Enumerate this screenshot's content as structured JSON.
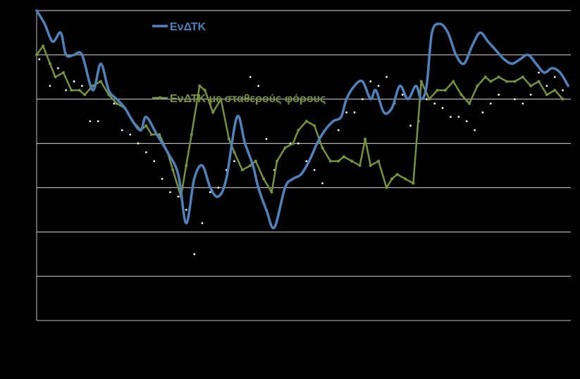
{
  "chart_data": {
    "type": "line",
    "title": "",
    "xlabel": "",
    "ylabel": "",
    "ylim": [
      0,
      7
    ],
    "grid": true,
    "legend": "top-center",
    "tick_labels_visible": false,
    "colors": {
      "background": "#000000",
      "gridline": "#d9d9d9",
      "axis": "#bfbfbf",
      "edtk": "#4f81bd",
      "edtk_ct": "#77933c",
      "dots": "#ffffff"
    },
    "series": [
      {
        "name": "ΕνΔΤΚ",
        "style": "smooth-line",
        "x": [
          0,
          1.5,
          3,
          4.5,
          5.5,
          7,
          8.5,
          10.5,
          12,
          13.5,
          15,
          16.5,
          18,
          19.5,
          20.5,
          22.5,
          24.5,
          26.5,
          28,
          29.5,
          31,
          32.5,
          34,
          35.5,
          37.5,
          39,
          40.5,
          41.5,
          43,
          44.5,
          46.5,
          48,
          49.5,
          51,
          52.5,
          54,
          55.5,
          57,
          58,
          59.5,
          61,
          62.5,
          63.5,
          65,
          66.5,
          68,
          69.5,
          71,
          72,
          73,
          74,
          75.5,
          77,
          78.5,
          80,
          81.5,
          83,
          84.5,
          86,
          87.5,
          89,
          90.5,
          92,
          93.5,
          95,
          96.5,
          98,
          99.5
        ],
        "values": [
          7.0,
          6.7,
          6.3,
          6.5,
          6.0,
          6.0,
          6.0,
          5.2,
          5.8,
          5.2,
          5.0,
          4.8,
          4.5,
          4.3,
          4.6,
          4.2,
          3.8,
          3.3,
          2.2,
          3.2,
          3.5,
          3.0,
          2.8,
          3.2,
          4.6,
          4.0,
          3.5,
          3.0,
          2.5,
          2.1,
          3.0,
          3.2,
          3.3,
          3.6,
          4.0,
          4.3,
          4.5,
          4.6,
          5.0,
          5.3,
          5.4,
          5.0,
          5.2,
          4.7,
          4.8,
          5.3,
          5.0,
          5.3,
          5.0,
          5.3,
          6.5,
          6.7,
          6.5,
          6.0,
          5.8,
          6.2,
          6.5,
          6.3,
          6.1,
          5.9,
          5.8,
          5.9,
          6.0,
          5.8,
          5.6,
          5.7,
          5.6,
          5.3
        ]
      },
      {
        "name": "ΕνΔΤΚ με σταθερούς φόρους",
        "style": "line-with-markers",
        "x": [
          0,
          1.2,
          2.5,
          3.5,
          5,
          6.5,
          8,
          9,
          10.5,
          12,
          13.5,
          15,
          16.5,
          18,
          19.5,
          20.5,
          21.5,
          23,
          24.5,
          25.5,
          27,
          28,
          29,
          30.5,
          31.5,
          33,
          34.5,
          36,
          37,
          38.5,
          40,
          41,
          42.5,
          44,
          45,
          46.5,
          48,
          49,
          50.5,
          52,
          53.5,
          55,
          56.5,
          57.5,
          59,
          60.5,
          61.5,
          62.5,
          64,
          65.5,
          66.5,
          67.5,
          69,
          70.5,
          72,
          73.5,
          75,
          76.5,
          78,
          79.5,
          81,
          82.5,
          84,
          85,
          86.5,
          88,
          89.5,
          91,
          92.5,
          94,
          95.5,
          97,
          98.5
        ],
        "values": [
          6.0,
          6.2,
          5.8,
          5.5,
          5.6,
          5.2,
          5.2,
          5.1,
          5.3,
          5.4,
          5.1,
          4.9,
          4.8,
          4.5,
          4.3,
          4.4,
          4.2,
          4.2,
          3.8,
          3.4,
          2.8,
          3.5,
          4.2,
          5.3,
          5.2,
          4.7,
          5.0,
          4.1,
          3.8,
          3.4,
          3.5,
          3.6,
          3.2,
          2.9,
          3.6,
          3.9,
          4.0,
          4.3,
          4.5,
          4.4,
          3.9,
          3.6,
          3.6,
          3.7,
          3.6,
          3.5,
          4.1,
          3.5,
          3.6,
          3.0,
          3.2,
          3.3,
          3.2,
          3.1,
          5.4,
          5.0,
          5.2,
          5.2,
          5.4,
          5.1,
          4.9,
          5.3,
          5.5,
          5.4,
          5.5,
          5.4,
          5.4,
          5.5,
          5.3,
          5.4,
          5.1,
          5.2,
          5.0
        ]
      },
      {
        "name": "",
        "style": "dots",
        "x": [
          0.5,
          2.5,
          4,
          5.5,
          7,
          8.5,
          10,
          11.5,
          13,
          14.5,
          16,
          17.5,
          19,
          20.5,
          22,
          23.5,
          25,
          26.5,
          28,
          29.5,
          31,
          32.5,
          34,
          35.5,
          37,
          38.5,
          40,
          41.5,
          43,
          44.5,
          46,
          47.5,
          49,
          50.5,
          52,
          53.5,
          55,
          56.5,
          58,
          59.5,
          61,
          62.5,
          64,
          65.5,
          67,
          68.5,
          70,
          71.5,
          73,
          74.5,
          76,
          77.5,
          79,
          80.5,
          82,
          83.5,
          85,
          86.5,
          88,
          89.5,
          91,
          92.5,
          94,
          95.5,
          97,
          98.5
        ],
        "values": [
          5.9,
          5.3,
          5.7,
          5.2,
          5.4,
          5.3,
          4.5,
          4.5,
          5.2,
          4.9,
          4.3,
          4.2,
          4.0,
          3.8,
          3.6,
          3.2,
          2.9,
          2.8,
          2.5,
          1.5,
          2.2,
          2.9,
          3.0,
          3.4,
          3.6,
          4.3,
          5.5,
          5.3,
          4.1,
          3.4,
          3.8,
          4.0,
          4.0,
          3.6,
          3.4,
          3.1,
          3.6,
          4.3,
          4.7,
          4.7,
          5.0,
          5.4,
          5.3,
          5.5,
          4.9,
          5.1,
          4.4,
          4.5,
          5.0,
          4.9,
          4.8,
          4.6,
          4.6,
          4.5,
          4.3,
          4.7,
          4.9,
          5.1,
          5.4,
          5.0,
          4.9,
          5.1,
          5.6,
          5.3,
          5.5,
          5.2
        ]
      }
    ]
  }
}
